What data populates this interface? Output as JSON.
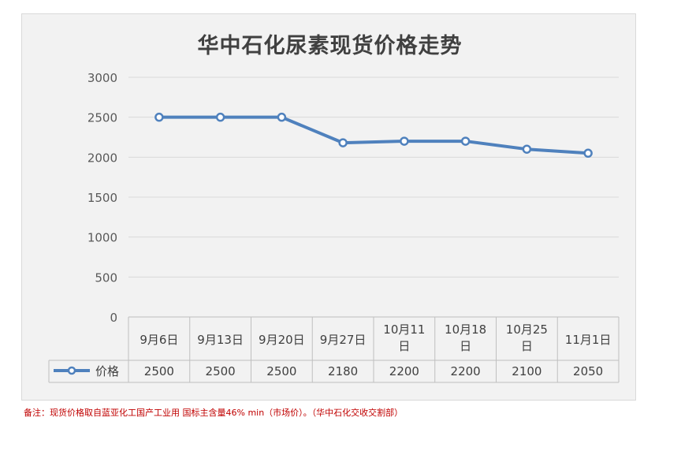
{
  "chart_data": {
    "type": "line",
    "title": "华中石化尿素现货价格走势",
    "categories": [
      "9月6日",
      "9月13日",
      "9月20日",
      "9月27日",
      "10月11\n日",
      "10月18\n日",
      "10月25\n日",
      "11月1日"
    ],
    "series": [
      {
        "name": "价格",
        "values": [
          2500,
          2500,
          2500,
          2180,
          2200,
          2200,
          2100,
          2050
        ],
        "color": "#4f81bd"
      }
    ],
    "yticks": [
      "0",
      "500",
      "1000",
      "1500",
      "2000",
      "2500",
      "3000"
    ],
    "ylim": [
      0,
      3000
    ],
    "grid": true,
    "data_table": true,
    "legend_position": "data-table-row"
  },
  "footnote": "备注：现货价格取自蓝亚化工国产工业用 国标主含量46% min（市场价）。（华中石化交收交割部）"
}
